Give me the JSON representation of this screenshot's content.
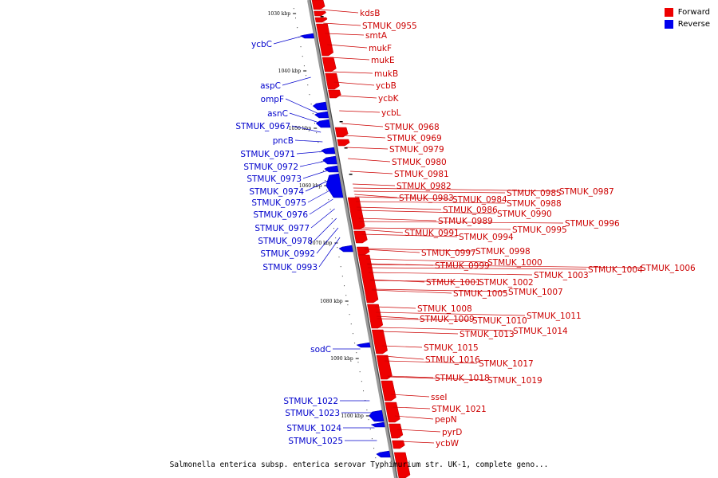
{
  "legend": {
    "forward_label": "Forward",
    "reverse_label": "Reverse",
    "forward_color": "#ee0000",
    "reverse_color": "#0000ee"
  },
  "caption": "Salmonella enterica subsp. enterica serovar Typhimurium str. UK-1, complete geno...",
  "ticks": [
    "1030 kbp",
    "1040 kbp",
    "1050 kbp",
    "1060 kbp",
    "1070 kbp",
    "1080 kbp",
    "1090 kbp",
    "1100 kbp"
  ],
  "forward_genes": [
    "kdsB",
    "STMUK_0955",
    "smtA",
    "mukF",
    "mukE",
    "mukB",
    "ycbB",
    "ycbK",
    "ycbL",
    "STMUK_0968",
    "STMUK_0969",
    "STMUK_0979",
    "STMUK_0980",
    "STMUK_0981",
    "STMUK_0982",
    "STMUK_0983",
    "STMUK_0984",
    "STMUK_0985",
    "STMUK_0987",
    "STMUK_0986",
    "STMUK_0988",
    "STMUK_0990",
    "STMUK_0989",
    "STMUK_0996",
    "STMUK_0991",
    "STMUK_0994",
    "STMUK_0995",
    "STMUK_0997",
    "STMUK_0998",
    "STMUK_0999",
    "STMUK_1000",
    "STMUK_1003",
    "STMUK_1004",
    "STMUK_1006",
    "STMUK_1001",
    "STMUK_1002",
    "STMUK_1005",
    "STMUK_1007",
    "STMUK_1008",
    "STMUK_1011",
    "STMUK_1009",
    "STMUK_1010",
    "STMUK_1014",
    "STMUK_1013",
    "STMUK_1015",
    "STMUK_1016",
    "STMUK_1017",
    "STMUK_1018",
    "STMUK_1019",
    "sseI",
    "STMUK_1021",
    "pepN",
    "pyrD",
    "ycbW"
  ],
  "reverse_genes": [
    "ycbC",
    "aspC",
    "ompF",
    "asnC",
    "STMUK_0967",
    "pncB",
    "STMUK_0971",
    "STMUK_0972",
    "STMUK_0973",
    "STMUK_0974",
    "STMUK_0975",
    "STMUK_0976",
    "STMUK_0977",
    "STMUK_0978",
    "STMUK_0992",
    "STMUK_0993",
    "sodC",
    "STMUK_1022",
    "STMUK_1023",
    "STMUK_1024",
    "STMUK_1025"
  ]
}
